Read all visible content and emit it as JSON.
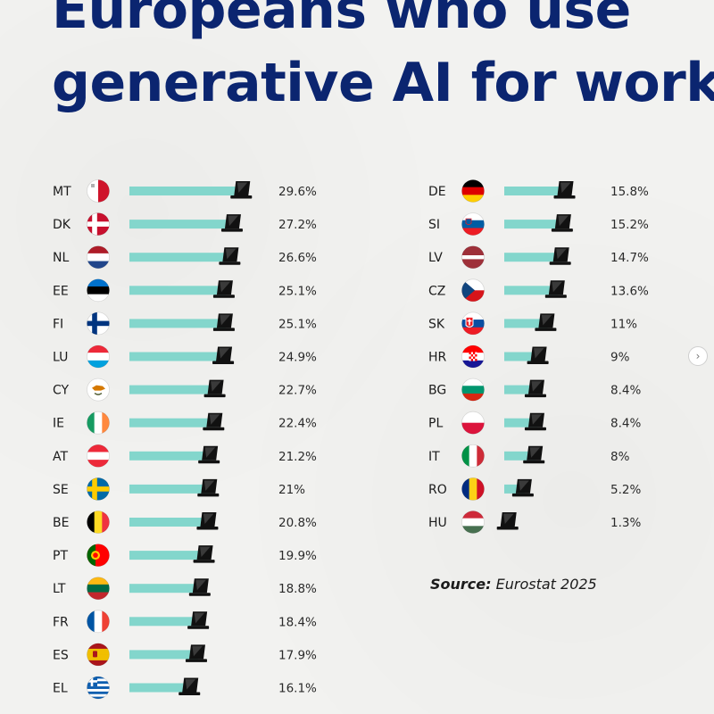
{
  "title_lines": [
    "Europeans who use",
    "generative AI for work"
  ],
  "source": {
    "label": "Source:",
    "value": "Eurostat 2025"
  },
  "nav": {
    "next_icon": "›"
  },
  "chart_data": {
    "type": "bar",
    "orientation": "horizontal",
    "unit": "%",
    "columns": [
      {
        "categories": [
          "MT",
          "DK",
          "NL",
          "EE",
          "FI",
          "LU",
          "CY",
          "IE",
          "AT",
          "SE",
          "BE",
          "PT",
          "LT",
          "FR",
          "ES",
          "EL"
        ],
        "values": [
          29.6,
          27.2,
          26.6,
          25.1,
          25.1,
          24.9,
          22.7,
          22.4,
          21.2,
          21,
          20.8,
          19.9,
          18.8,
          18.4,
          17.9,
          16.1
        ],
        "labels": [
          "29.6%",
          "27.2%",
          "26.6%",
          "25.1%",
          "25.1%",
          "24.9%",
          "22.7%",
          "22.4%",
          "21.2%",
          "21%",
          "20.8%",
          "19.9%",
          "18.8%",
          "18.4%",
          "17.9%",
          "16.1%"
        ]
      },
      {
        "categories": [
          "DE",
          "SI",
          "LV",
          "CZ",
          "SK",
          "HR",
          "BG",
          "PL",
          "IT",
          "RO",
          "HU"
        ],
        "values": [
          15.8,
          15.2,
          14.7,
          13.6,
          11,
          9,
          8.4,
          8.4,
          8,
          5.2,
          1.3
        ],
        "labels": [
          "15.8%",
          "15.2%",
          "14.7%",
          "13.6%",
          "11%",
          "9%",
          "8.4%",
          "8.4%",
          "8%",
          "5.2%",
          "1.3%"
        ]
      }
    ],
    "colors": {
      "bar": "#83d6cc",
      "laptop": "#111111",
      "title": "#0b2570"
    },
    "marker_icon": "laptop-icon",
    "flag_icons": "country-flag-icon"
  }
}
